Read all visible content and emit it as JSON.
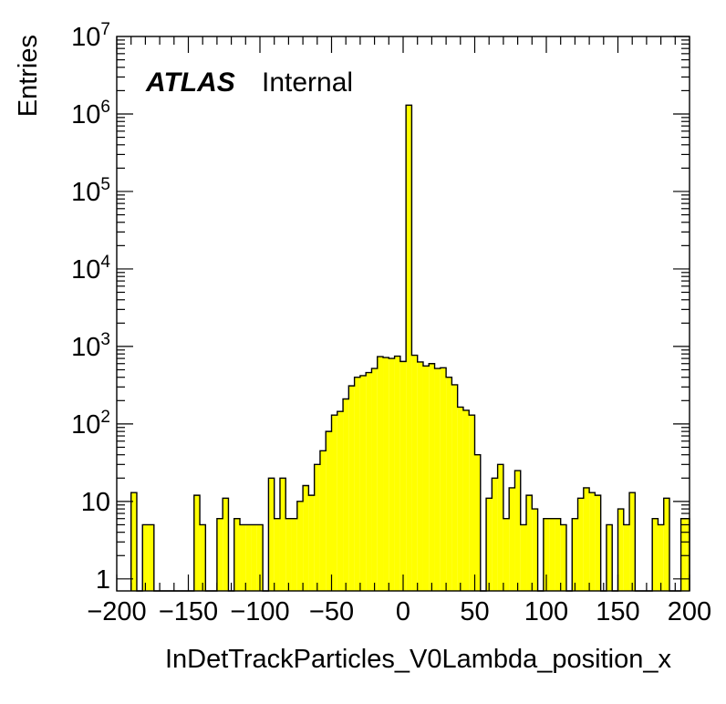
{
  "chart_data": {
    "type": "bar",
    "histogram": true,
    "xlabel": "InDetTrackParticles_V0Lambda_position_x",
    "ylabel": "Entries",
    "annotation_bold": "ATLAS",
    "annotation_normal": "Internal",
    "log_y": true,
    "xlim": [
      -200,
      200
    ],
    "ylim": [
      0.7,
      10000000
    ],
    "bin_width": 4,
    "x_ticks": [
      {
        "value": -200,
        "label": "−200"
      },
      {
        "value": -150,
        "label": "−150"
      },
      {
        "value": -100,
        "label": "−100"
      },
      {
        "value": -50,
        "label": "−50"
      },
      {
        "value": 0,
        "label": "0"
      },
      {
        "value": 50,
        "label": "50"
      },
      {
        "value": 100,
        "label": "100"
      },
      {
        "value": 150,
        "label": "150"
      },
      {
        "value": 200,
        "label": "200"
      }
    ],
    "y_ticks": [
      {
        "value": 1,
        "base": "1",
        "exp": ""
      },
      {
        "value": 10,
        "base": "10",
        "exp": ""
      },
      {
        "value": 100,
        "base": "10",
        "exp": "2"
      },
      {
        "value": 1000,
        "base": "10",
        "exp": "3"
      },
      {
        "value": 10000,
        "base": "10",
        "exp": "4"
      },
      {
        "value": 100000,
        "base": "10",
        "exp": "5"
      },
      {
        "value": 1000000,
        "base": "10",
        "exp": "6"
      },
      {
        "value": 10000000,
        "base": "10",
        "exp": "7"
      }
    ],
    "bins": [
      {
        "x": -188,
        "v": 13
      },
      {
        "x": -184,
        "v": 0
      },
      {
        "x": -180,
        "v": 5
      },
      {
        "x": -176,
        "v": 5
      },
      {
        "x": -172,
        "v": 0
      },
      {
        "x": -168,
        "v": 0
      },
      {
        "x": -164,
        "v": 0
      },
      {
        "x": -160,
        "v": 0
      },
      {
        "x": -156,
        "v": 0
      },
      {
        "x": -152,
        "v": 0
      },
      {
        "x": -148,
        "v": 0
      },
      {
        "x": -144,
        "v": 12
      },
      {
        "x": -140,
        "v": 5
      },
      {
        "x": -136,
        "v": 0
      },
      {
        "x": -132,
        "v": 0
      },
      {
        "x": -128,
        "v": 6
      },
      {
        "x": -124,
        "v": 11
      },
      {
        "x": -120,
        "v": 0
      },
      {
        "x": -116,
        "v": 6
      },
      {
        "x": -112,
        "v": 5
      },
      {
        "x": -108,
        "v": 5
      },
      {
        "x": -104,
        "v": 5
      },
      {
        "x": -100,
        "v": 5
      },
      {
        "x": -96,
        "v": 0
      },
      {
        "x": -92,
        "v": 20
      },
      {
        "x": -88,
        "v": 6
      },
      {
        "x": -84,
        "v": 20
      },
      {
        "x": -80,
        "v": 6
      },
      {
        "x": -76,
        "v": 6
      },
      {
        "x": -72,
        "v": 10
      },
      {
        "x": -68,
        "v": 16
      },
      {
        "x": -64,
        "v": 12
      },
      {
        "x": -60,
        "v": 30
      },
      {
        "x": -56,
        "v": 45
      },
      {
        "x": -52,
        "v": 80
      },
      {
        "x": -48,
        "v": 130
      },
      {
        "x": -44,
        "v": 145
      },
      {
        "x": -40,
        "v": 210
      },
      {
        "x": -36,
        "v": 310
      },
      {
        "x": -32,
        "v": 400
      },
      {
        "x": -28,
        "v": 420
      },
      {
        "x": -24,
        "v": 460
      },
      {
        "x": -20,
        "v": 520
      },
      {
        "x": -16,
        "v": 740
      },
      {
        "x": -12,
        "v": 720
      },
      {
        "x": -8,
        "v": 700
      },
      {
        "x": -4,
        "v": 750
      },
      {
        "x": 0,
        "v": 640
      },
      {
        "x": 4,
        "v": 1300000
      },
      {
        "x": 8,
        "v": 770
      },
      {
        "x": 12,
        "v": 630
      },
      {
        "x": 16,
        "v": 560
      },
      {
        "x": 20,
        "v": 600
      },
      {
        "x": 24,
        "v": 520
      },
      {
        "x": 28,
        "v": 530
      },
      {
        "x": 32,
        "v": 400
      },
      {
        "x": 36,
        "v": 320
      },
      {
        "x": 40,
        "v": 165
      },
      {
        "x": 44,
        "v": 150
      },
      {
        "x": 48,
        "v": 130
      },
      {
        "x": 52,
        "v": 40
      },
      {
        "x": 56,
        "v": 0
      },
      {
        "x": 60,
        "v": 11
      },
      {
        "x": 64,
        "v": 20
      },
      {
        "x": 68,
        "v": 30
      },
      {
        "x": 72,
        "v": 6
      },
      {
        "x": 76,
        "v": 15
      },
      {
        "x": 80,
        "v": 25
      },
      {
        "x": 84,
        "v": 5
      },
      {
        "x": 88,
        "v": 12
      },
      {
        "x": 92,
        "v": 8
      },
      {
        "x": 96,
        "v": 0
      },
      {
        "x": 100,
        "v": 6
      },
      {
        "x": 104,
        "v": 6
      },
      {
        "x": 108,
        "v": 6
      },
      {
        "x": 112,
        "v": 5
      },
      {
        "x": 116,
        "v": 0
      },
      {
        "x": 120,
        "v": 6
      },
      {
        "x": 124,
        "v": 11
      },
      {
        "x": 128,
        "v": 15
      },
      {
        "x": 132,
        "v": 13
      },
      {
        "x": 136,
        "v": 12
      },
      {
        "x": 140,
        "v": 0
      },
      {
        "x": 144,
        "v": 5
      },
      {
        "x": 148,
        "v": 0
      },
      {
        "x": 152,
        "v": 8
      },
      {
        "x": 156,
        "v": 5
      },
      {
        "x": 160,
        "v": 13
      },
      {
        "x": 164,
        "v": 0
      },
      {
        "x": 168,
        "v": 0
      },
      {
        "x": 172,
        "v": 0
      },
      {
        "x": 176,
        "v": 6
      },
      {
        "x": 180,
        "v": 5
      },
      {
        "x": 184,
        "v": 11
      },
      {
        "x": 188,
        "v": 0
      },
      {
        "x": 192,
        "v": 0
      },
      {
        "x": 196,
        "v": 6
      },
      {
        "x": 200,
        "v": 6
      }
    ],
    "colors": {
      "fill": "#ffff00",
      "line": "#000000",
      "frame": "#000000"
    },
    "grid": false
  }
}
